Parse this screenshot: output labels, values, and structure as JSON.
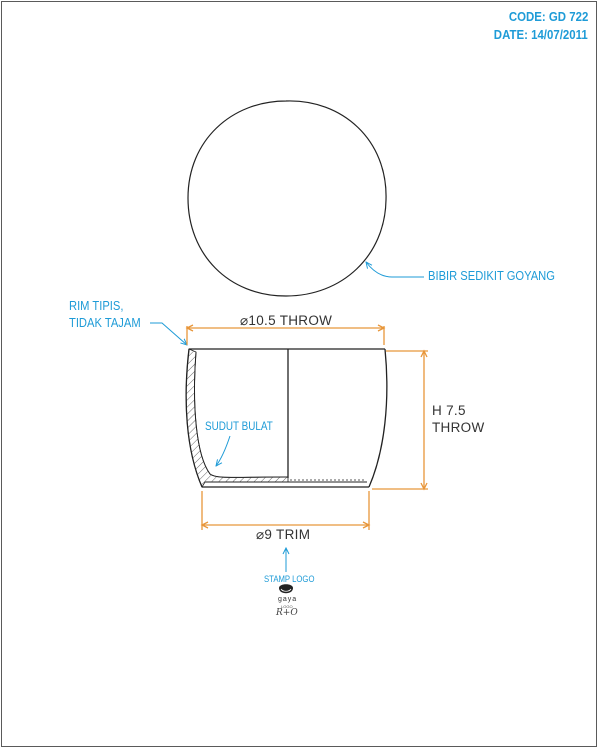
{
  "header": {
    "code": "CODE: GD 722",
    "date": "DATE: 14/07/2011"
  },
  "callouts": {
    "wobbly_lip": "BIBIR SEDIKIT GOYANG",
    "thin_rim_line1": "RIM TIPIS,",
    "thin_rim_line2": "TIDAK TAJAM",
    "rounded_corner": "SUDUT BULAT",
    "stamp_logo": "STAMP LOGO"
  },
  "dimensions": {
    "top_diameter": "⌀10.5 THROW",
    "height_line1": "H 7.5",
    "height_line2": "THROW",
    "bottom_diameter": "⌀9 TRIM"
  },
  "logo": {
    "word": "gaya",
    "small": "LOGO",
    "mark": "R+O"
  },
  "colors": {
    "callout_blue": "#1e9bd7",
    "dimension_orange": "#e8963a",
    "line": "#222222"
  }
}
